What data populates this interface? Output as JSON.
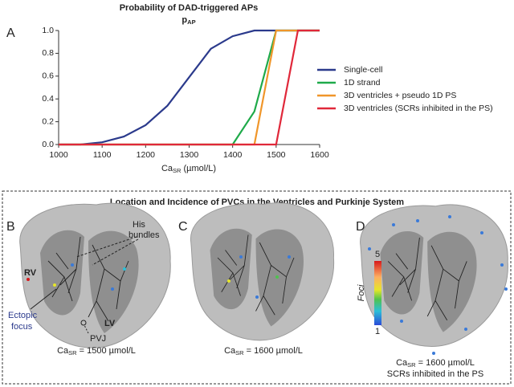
{
  "chart_data": {
    "type": "line",
    "title": "Probability of DAD-triggered APs",
    "subtitle": {
      "main": "p",
      "sub": "AP"
    },
    "x_label": {
      "main": "Ca",
      "sub": "SR",
      "rest": " (µmol/L)"
    },
    "x": [
      1000,
      1050,
      1100,
      1150,
      1200,
      1250,
      1300,
      1350,
      1400,
      1450,
      1500,
      1550,
      1600
    ],
    "series": [
      {
        "name": "Single-cell",
        "color": "#2b3a8c",
        "values": [
          0,
          0,
          0.02,
          0.07,
          0.17,
          0.34,
          0.59,
          0.84,
          0.95,
          1,
          1,
          1,
          1
        ]
      },
      {
        "name": "1D strand",
        "color": "#1faa4a",
        "values": [
          0,
          0,
          0,
          0,
          0,
          0,
          0,
          0,
          0,
          0.29,
          1,
          1,
          1
        ]
      },
      {
        "name": "3D ventricles + pseudo 1D PS",
        "color": "#f0962a",
        "values": [
          0,
          0,
          0,
          0,
          0,
          0,
          0,
          0,
          0,
          0,
          1,
          1,
          1
        ]
      },
      {
        "name": "3D ventricles (SCRs inhibited in the PS)",
        "color": "#e0283a",
        "values": [
          0,
          0,
          0,
          0,
          0,
          0,
          0,
          0,
          0,
          0,
          0,
          1,
          1
        ]
      }
    ],
    "xlim": [
      1000,
      1600
    ],
    "xticks": [
      1000,
      1100,
      1200,
      1300,
      1400,
      1500,
      1600
    ],
    "ylim": [
      0,
      1
    ],
    "yticks": [
      {
        "value": 0,
        "label": "0.0"
      },
      {
        "value": 0.2,
        "label": "0.2"
      },
      {
        "value": 0.4,
        "label": "0.4"
      },
      {
        "value": 0.6,
        "label": "0.6"
      },
      {
        "value": 0.8,
        "label": "0.8"
      },
      {
        "value": 1,
        "label": "1.0"
      }
    ],
    "grid": false
  },
  "panel_labels": [
    "A",
    "B",
    "C",
    "D"
  ],
  "section_title": "Location and Incidence of PVCs in the Ventricles and Purkinje System",
  "annotations": {
    "his": [
      "His",
      "bundles"
    ],
    "rv": "RV",
    "lv": "LV",
    "ectopic": [
      "Ectopic",
      "focus"
    ],
    "pvj": "PVJ"
  },
  "colorbar": {
    "label": "Foci",
    "ticks": [
      5,
      1
    ]
  },
  "captions": [
    {
      "main": "Ca",
      "sub": "SR",
      "rest": " = 1500 µmol/L"
    },
    {
      "main": "Ca",
      "sub": "SR",
      "rest": " = 1600 µmol/L"
    },
    {
      "main": "Ca",
      "sub": "SR",
      "rest": " = 1600 µmol/L",
      "note": "SCRs inhibited in the PS"
    }
  ]
}
